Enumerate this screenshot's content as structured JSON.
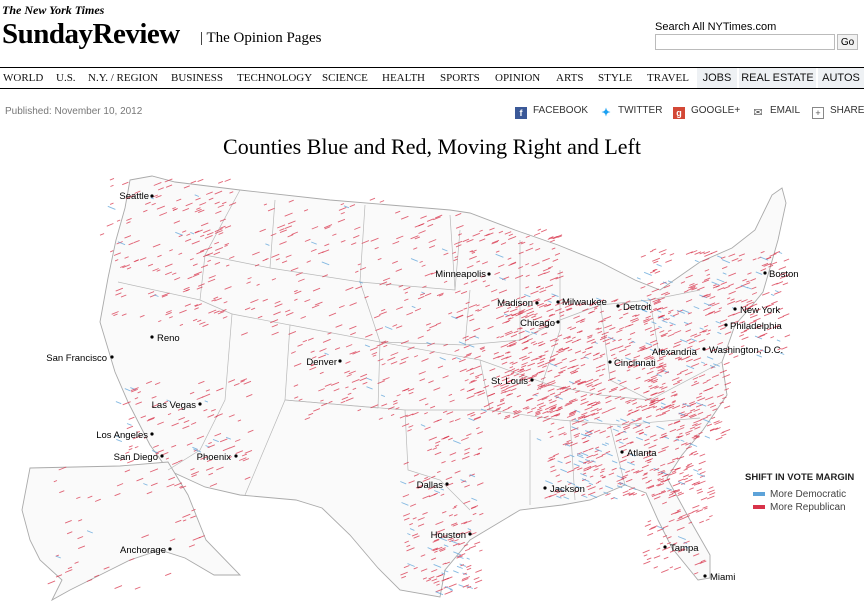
{
  "header": {
    "brand": "The New York Times",
    "section": "SundayReview",
    "subtitle": "| The Opinion Pages",
    "search_label": "Search All NYTimes.com",
    "search_button": "Go",
    "search_value": ""
  },
  "nav": [
    "WORLD",
    "U.S.",
    "N.Y. / REGION",
    "BUSINESS",
    "TECHNOLOGY",
    "SCIENCE",
    "HEALTH",
    "SPORTS",
    "OPINION",
    "ARTS",
    "STYLE",
    "TRAVEL"
  ],
  "nav_alt": [
    "JOBS",
    "REAL ESTATE",
    "AUTOS"
  ],
  "article": {
    "published": "Published: November 10, 2012",
    "share": [
      "FACEBOOK",
      "TWITTER",
      "GOOGLE+",
      "EMAIL",
      "SHARE"
    ],
    "title": "Counties Blue and Red, Moving Right and Left"
  },
  "map": {
    "cities": [
      "Seattle",
      "Minneapolis",
      "Boston",
      "Madison",
      "Milwaukee",
      "Detroit",
      "New York",
      "Chicago",
      "Philadelphia",
      "Reno",
      "San Francisco",
      "Denver",
      "Cincinnati",
      "Alexandria",
      "Washington, D.C.",
      "St. Louis",
      "Las Vegas",
      "Los Angeles",
      "San Diego",
      "Phoenix",
      "Atlanta",
      "Dallas",
      "Jackson",
      "Houston",
      "Tampa",
      "Anchorage",
      "Miami"
    ],
    "legend": {
      "title": "SHIFT IN VOTE MARGIN",
      "items": [
        {
          "label": "More Democratic",
          "color": "#5da3d9"
        },
        {
          "label": "More Republican",
          "color": "#d8334a"
        }
      ]
    },
    "colors": {
      "democratic": "#5da3d9",
      "republican": "#d8334a",
      "border": "#aaaaaa"
    }
  }
}
